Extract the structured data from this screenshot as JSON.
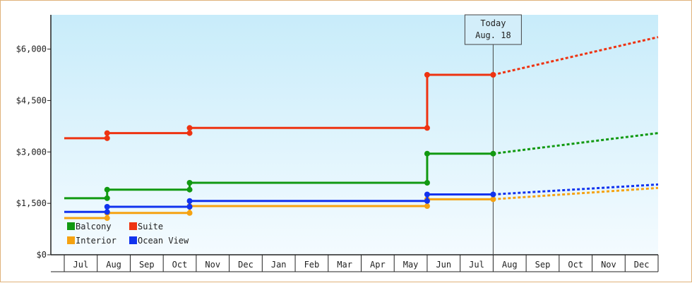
{
  "chart_data": {
    "type": "line",
    "title": "",
    "xlabel": "",
    "ylabel": "",
    "x_ticks": [
      "Jul",
      "Aug",
      "Sep",
      "Oct",
      "Nov",
      "Dec",
      "Jan",
      "Feb",
      "Mar",
      "Apr",
      "May",
      "Jun",
      "Jul",
      "Aug",
      "Sep",
      "Oct",
      "Nov",
      "Dec"
    ],
    "ylim": [
      0,
      7000
    ],
    "y_ticks": [
      "$0",
      "$1,500",
      "$3,000",
      "$4,500",
      "$6,000"
    ],
    "y_tick_values": [
      0,
      1500,
      3000,
      4500,
      6000
    ],
    "grid": false,
    "legend_position": "bottom-left",
    "today": {
      "line1": "Today",
      "line2": "Aug. 18",
      "x": 13.0
    },
    "series": [
      {
        "name": "Balcony",
        "color": "#119911",
        "step_points": [
          [
            0.0,
            1650
          ],
          [
            1.3,
            1650
          ],
          [
            1.3,
            1900
          ],
          [
            3.8,
            1900
          ],
          [
            3.8,
            2100
          ],
          [
            11.0,
            2100
          ],
          [
            11.0,
            2950
          ],
          [
            13.0,
            2950
          ]
        ],
        "forecast": [
          [
            13.0,
            2950
          ],
          [
            18.0,
            3550
          ]
        ]
      },
      {
        "name": "Suite",
        "color": "#ee3311",
        "step_points": [
          [
            0.0,
            3400
          ],
          [
            1.3,
            3400
          ],
          [
            1.3,
            3550
          ],
          [
            3.8,
            3550
          ],
          [
            3.8,
            3700
          ],
          [
            11.0,
            3700
          ],
          [
            11.0,
            5250
          ],
          [
            13.0,
            5250
          ]
        ],
        "forecast": [
          [
            13.0,
            5250
          ],
          [
            18.0,
            6350
          ]
        ]
      },
      {
        "name": "Interior",
        "color": "#f5a211",
        "step_points": [
          [
            0.0,
            1070
          ],
          [
            1.3,
            1070
          ],
          [
            1.3,
            1220
          ],
          [
            3.8,
            1220
          ],
          [
            3.8,
            1420
          ],
          [
            11.0,
            1420
          ],
          [
            11.0,
            1620
          ],
          [
            13.0,
            1620
          ]
        ],
        "forecast": [
          [
            13.0,
            1620
          ],
          [
            18.0,
            1950
          ]
        ]
      },
      {
        "name": "Ocean View",
        "color": "#1133ee",
        "step_points": [
          [
            0.0,
            1250
          ],
          [
            1.3,
            1250
          ],
          [
            1.3,
            1400
          ],
          [
            3.8,
            1400
          ],
          [
            3.8,
            1570
          ],
          [
            11.0,
            1570
          ],
          [
            11.0,
            1760
          ],
          [
            13.0,
            1760
          ]
        ],
        "forecast": [
          [
            13.0,
            1760
          ],
          [
            18.0,
            2050
          ]
        ]
      }
    ]
  }
}
